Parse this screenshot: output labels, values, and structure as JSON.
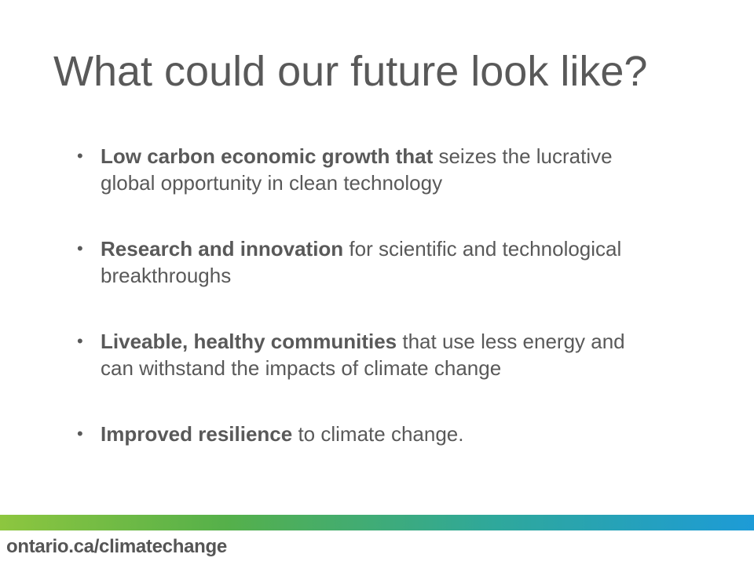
{
  "slide": {
    "title": "What could our future look like?",
    "bullets": [
      {
        "bold": "Low carbon economic growth  that",
        "text": " seizes the lucrative global opportunity in clean technology"
      },
      {
        "bold": "Research and innovation",
        "text": " for scientific and technological breakthroughs"
      },
      {
        "bold": "Liveable, healthy communities",
        "text": " that use less energy and can withstand the impacts of climate change"
      },
      {
        "bold": "Improved resilience",
        "text": " to climate change."
      }
    ]
  },
  "footer": {
    "url": "ontario.ca/climatechange"
  },
  "colors": {
    "text": "#595959",
    "gradient_start": "#8dc63f",
    "gradient_end": "#1d9bd7"
  }
}
